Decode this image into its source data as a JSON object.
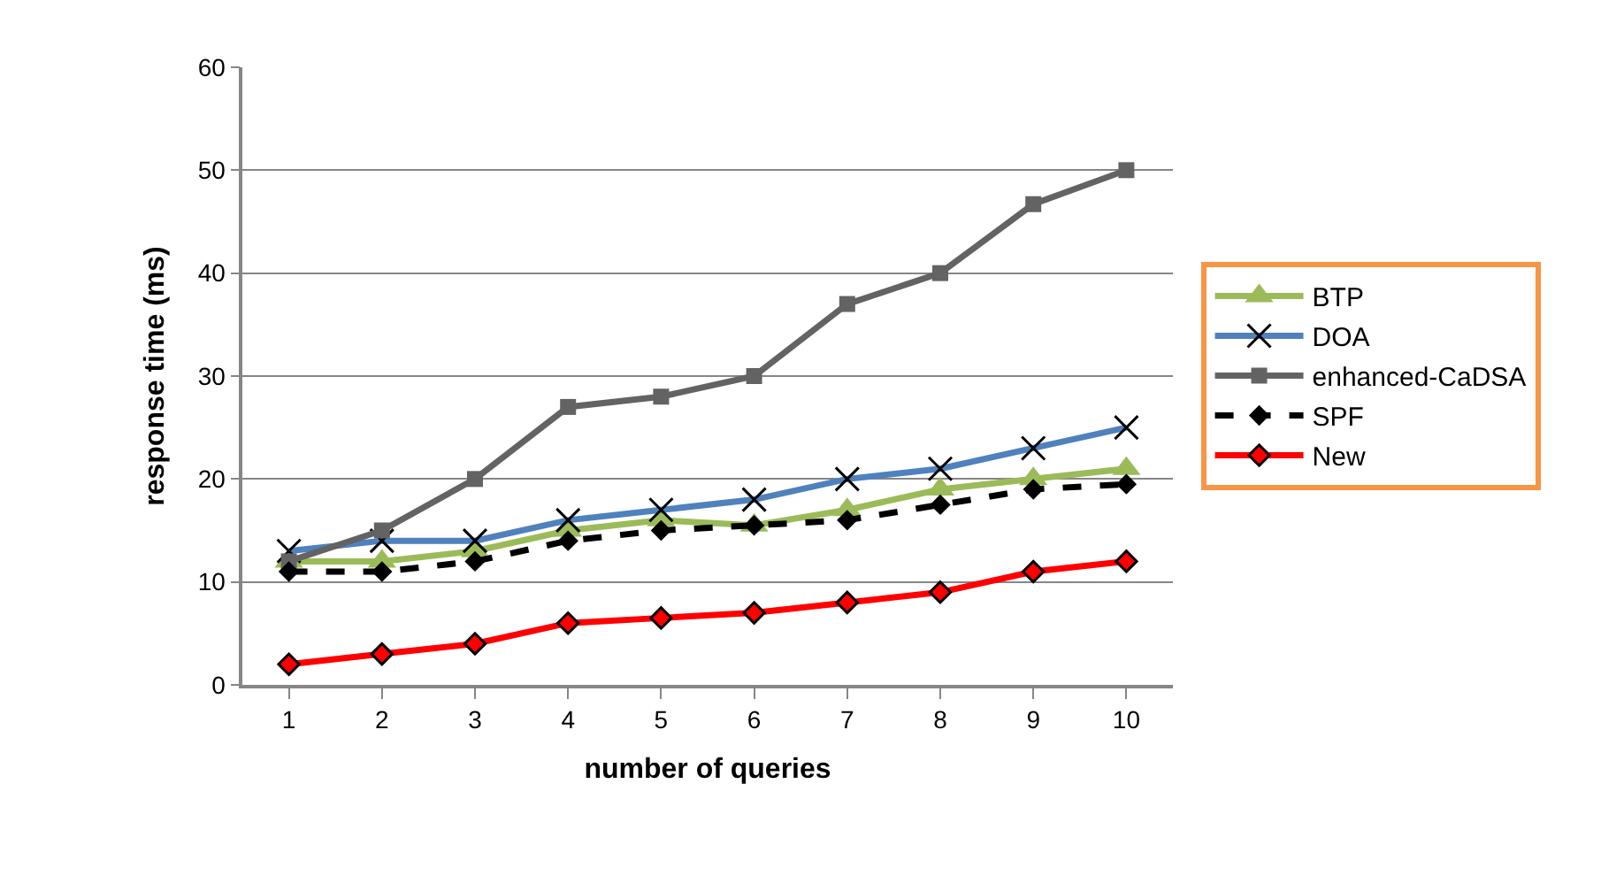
{
  "chart_data": {
    "type": "line",
    "xlabel": "number of queries",
    "ylabel": "response time (ms)",
    "categories": [
      "1",
      "2",
      "3",
      "4",
      "5",
      "6",
      "7",
      "8",
      "9",
      "10"
    ],
    "ylim": [
      0,
      60
    ],
    "yticks": [
      0,
      10,
      20,
      30,
      40,
      50,
      60
    ],
    "grid": "y",
    "legend": "right",
    "series": [
      {
        "name": "BTP",
        "color": "#9bbb59",
        "marker": "triangle",
        "line_style": "solid",
        "values": [
          12,
          12,
          13,
          15,
          16,
          15.5,
          17,
          19,
          20,
          21
        ]
      },
      {
        "name": "DOA",
        "color": "#4f81bd",
        "marker": "cross",
        "line_style": "solid",
        "values": [
          13,
          14,
          14,
          16,
          17,
          18,
          20,
          21,
          23,
          25
        ]
      },
      {
        "name": "enhanced-CaDSA",
        "color": "#636363",
        "marker": "square",
        "line_style": "solid",
        "values": [
          12,
          15,
          20,
          27,
          28,
          30,
          37,
          40,
          46.7,
          50
        ]
      },
      {
        "name": "SPF",
        "color": "#000000",
        "marker": "diamond",
        "line_style": "dashed",
        "values": [
          11,
          11,
          12,
          14,
          15,
          15.5,
          16,
          17.5,
          19,
          19.5
        ]
      },
      {
        "name": "New",
        "color": "#ff0000",
        "marker": "diamond",
        "line_style": "solid",
        "values": [
          2,
          3,
          4,
          6,
          6.5,
          7,
          8,
          9,
          11,
          12
        ]
      }
    ]
  }
}
